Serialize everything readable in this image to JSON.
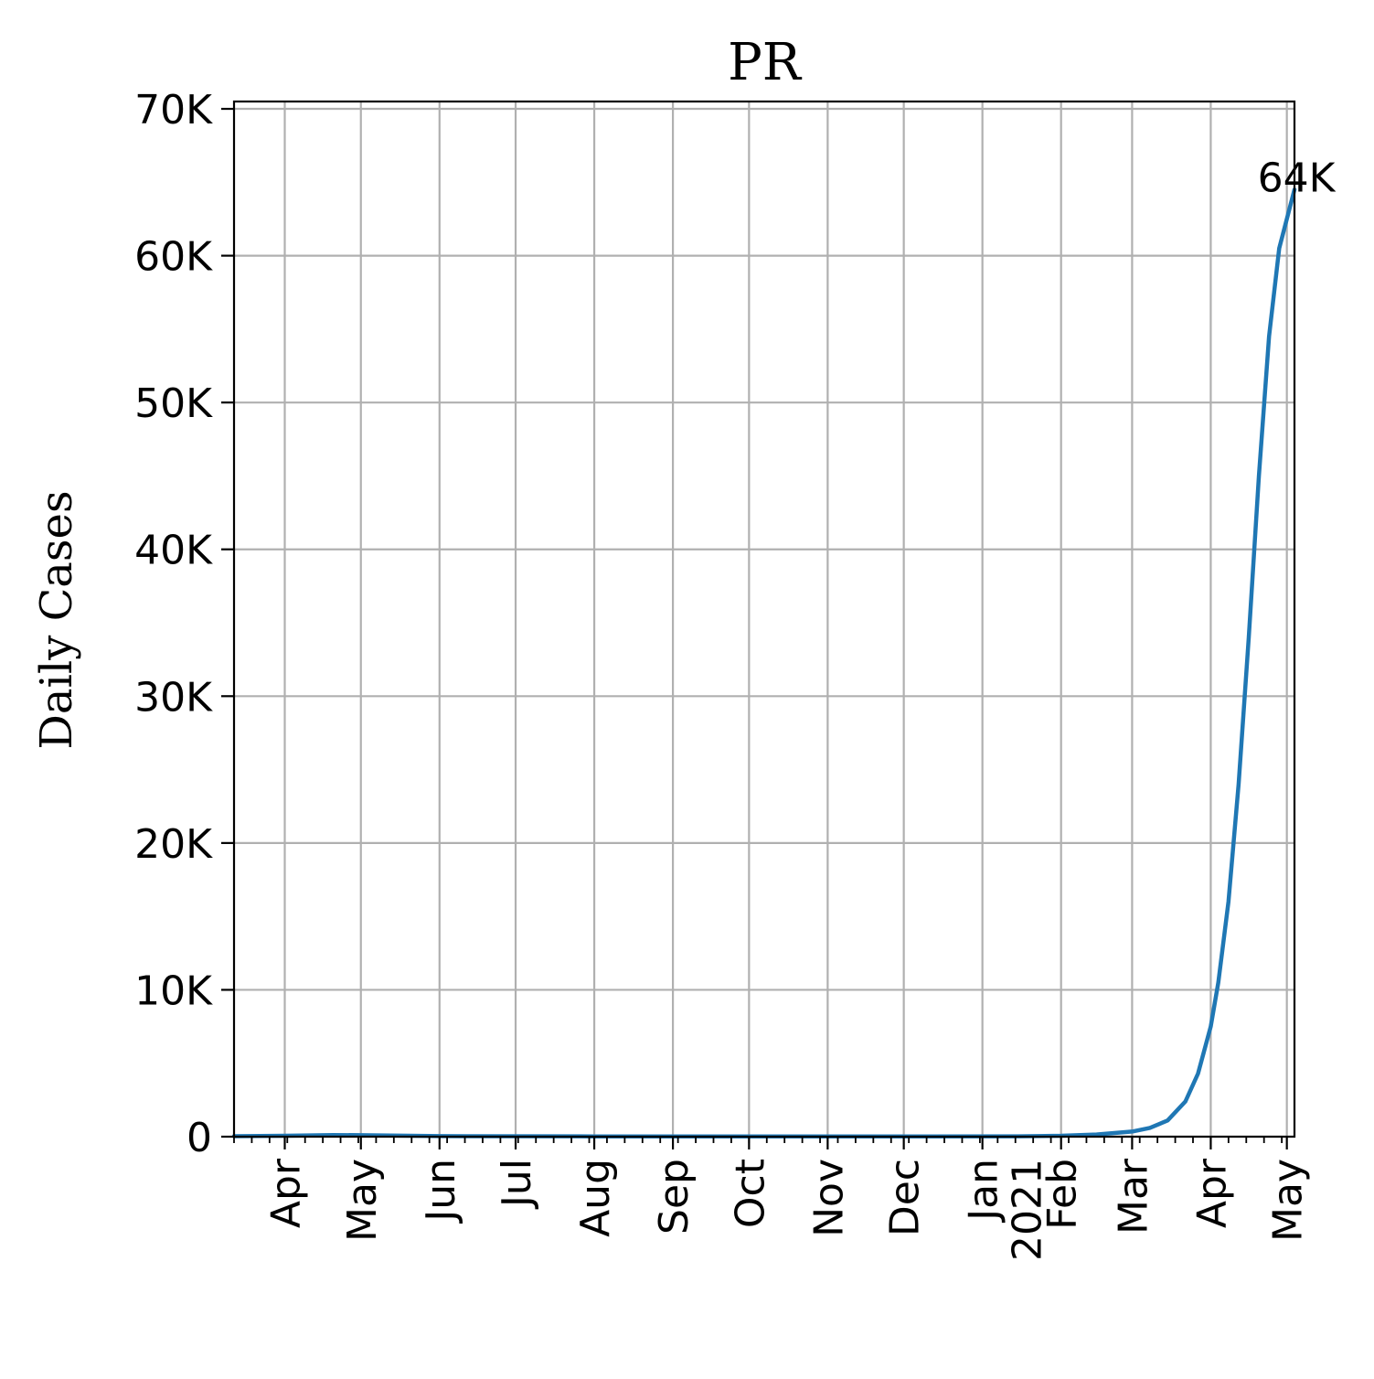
{
  "chart_data": {
    "type": "line",
    "title": "PR",
    "xlabel": "",
    "ylabel": "Daily Cases",
    "x_range": [
      "2020-03-12",
      "2021-05-04"
    ],
    "ylim": [
      0,
      70500
    ],
    "y_ticks": [
      {
        "value": 0,
        "label": "0"
      },
      {
        "value": 10000,
        "label": "10K"
      },
      {
        "value": 20000,
        "label": "20K"
      },
      {
        "value": 30000,
        "label": "30K"
      },
      {
        "value": 40000,
        "label": "40K"
      },
      {
        "value": 50000,
        "label": "50K"
      },
      {
        "value": 60000,
        "label": "60K"
      },
      {
        "value": 70000,
        "label": "70K"
      }
    ],
    "x_ticks": [
      {
        "date": "2020-04-01",
        "label": "Apr"
      },
      {
        "date": "2020-05-01",
        "label": "May"
      },
      {
        "date": "2020-06-01",
        "label": "Jun"
      },
      {
        "date": "2020-07-01",
        "label": "Jul"
      },
      {
        "date": "2020-08-01",
        "label": "Aug"
      },
      {
        "date": "2020-09-01",
        "label": "Sep"
      },
      {
        "date": "2020-10-01",
        "label": "Oct"
      },
      {
        "date": "2020-11-01",
        "label": "Nov"
      },
      {
        "date": "2020-12-01",
        "label": "Dec"
      },
      {
        "date": "2021-01-01",
        "label": "Jan\n2021"
      },
      {
        "date": "2021-02-01",
        "label": "Feb"
      },
      {
        "date": "2021-03-01",
        "label": "Mar"
      },
      {
        "date": "2021-04-01",
        "label": "Apr"
      },
      {
        "date": "2021-05-01",
        "label": "May"
      }
    ],
    "grid": true,
    "series": [
      {
        "color": "#1f77b4",
        "points": [
          {
            "x": "2020-03-12",
            "y": 30
          },
          {
            "x": "2020-04-01",
            "y": 60
          },
          {
            "x": "2020-04-20",
            "y": 110
          },
          {
            "x": "2020-05-01",
            "y": 100
          },
          {
            "x": "2020-06-01",
            "y": 40
          },
          {
            "x": "2020-08-01",
            "y": 20
          },
          {
            "x": "2020-10-01",
            "y": 15
          },
          {
            "x": "2020-12-01",
            "y": 15
          },
          {
            "x": "2021-01-15",
            "y": 25
          },
          {
            "x": "2021-02-01",
            "y": 60
          },
          {
            "x": "2021-02-15",
            "y": 150
          },
          {
            "x": "2021-03-01",
            "y": 350
          },
          {
            "x": "2021-03-08",
            "y": 600
          },
          {
            "x": "2021-03-15",
            "y": 1100
          },
          {
            "x": "2021-03-22",
            "y": 2400
          },
          {
            "x": "2021-03-27",
            "y": 4300
          },
          {
            "x": "2021-04-01",
            "y": 7500
          },
          {
            "x": "2021-04-04",
            "y": 10500
          },
          {
            "x": "2021-04-08",
            "y": 16000
          },
          {
            "x": "2021-04-12",
            "y": 24000
          },
          {
            "x": "2021-04-16",
            "y": 34000
          },
          {
            "x": "2021-04-20",
            "y": 45000
          },
          {
            "x": "2021-04-24",
            "y": 54500
          },
          {
            "x": "2021-04-28",
            "y": 60500
          },
          {
            "x": "2021-05-04",
            "y": 64500
          }
        ]
      }
    ],
    "annotations": [
      {
        "text": "64K",
        "x": "2021-05-04",
        "y": 64500
      }
    ]
  }
}
